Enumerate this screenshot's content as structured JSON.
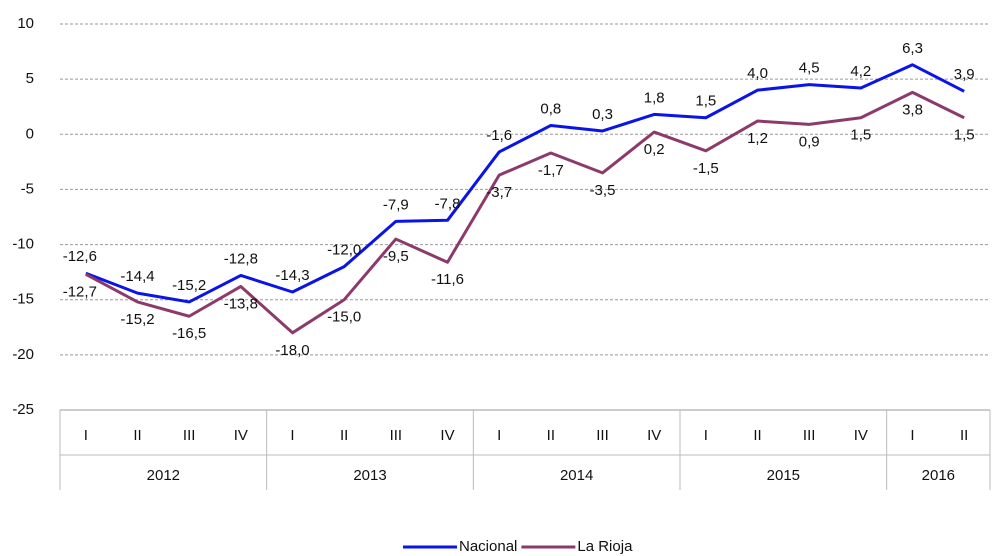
{
  "chart_data": {
    "type": "line",
    "categories": [
      "I",
      "II",
      "III",
      "IV",
      "I",
      "II",
      "III",
      "IV",
      "I",
      "II",
      "III",
      "IV",
      "I",
      "II",
      "III",
      "IV",
      "I",
      "II"
    ],
    "category_groups": [
      "2012",
      "2013",
      "2014",
      "2015",
      "2016"
    ],
    "series": [
      {
        "name": "Nacional",
        "color": "#0a14e6",
        "values": [
          -12.6,
          -14.4,
          -15.2,
          -12.8,
          -14.3,
          -12.0,
          -7.9,
          -7.8,
          -1.6,
          0.8,
          0.3,
          1.8,
          1.5,
          4.0,
          4.5,
          4.2,
          6.3,
          3.9
        ],
        "value_labels": [
          "-12,6",
          "-14,4",
          "-15,2",
          "-12,8",
          "-14,3",
          "-12,0",
          "-7,9",
          "-7,8",
          "-1,6",
          "0,8",
          "0,3",
          "1,8",
          "1,5",
          "4,0",
          "4,5",
          "4,2",
          "6,3",
          "3,9"
        ]
      },
      {
        "name": "La Rioja",
        "color": "#8b3a6b",
        "values": [
          -12.7,
          -15.2,
          -16.5,
          -13.8,
          -18.0,
          -15.0,
          -9.5,
          -11.6,
          -3.7,
          -1.7,
          -3.5,
          0.2,
          -1.5,
          1.2,
          0.9,
          1.5,
          3.8,
          1.5
        ],
        "value_labels": [
          "-12,7",
          "-15,2",
          "-16,5",
          "-13,8",
          "-18,0",
          "-15,0",
          "-9,5",
          "-11,6",
          "-3,7",
          "-1,7",
          "-3,5",
          "0,2",
          "-1,5",
          "1,2",
          "0,9",
          "1,5",
          "3,8",
          "1,5"
        ]
      }
    ],
    "ylim": [
      -25,
      10
    ],
    "yticks": [
      10,
      5,
      0,
      -5,
      -10,
      -15,
      -20,
      -25
    ],
    "grid": true,
    "legend": "bottom"
  }
}
